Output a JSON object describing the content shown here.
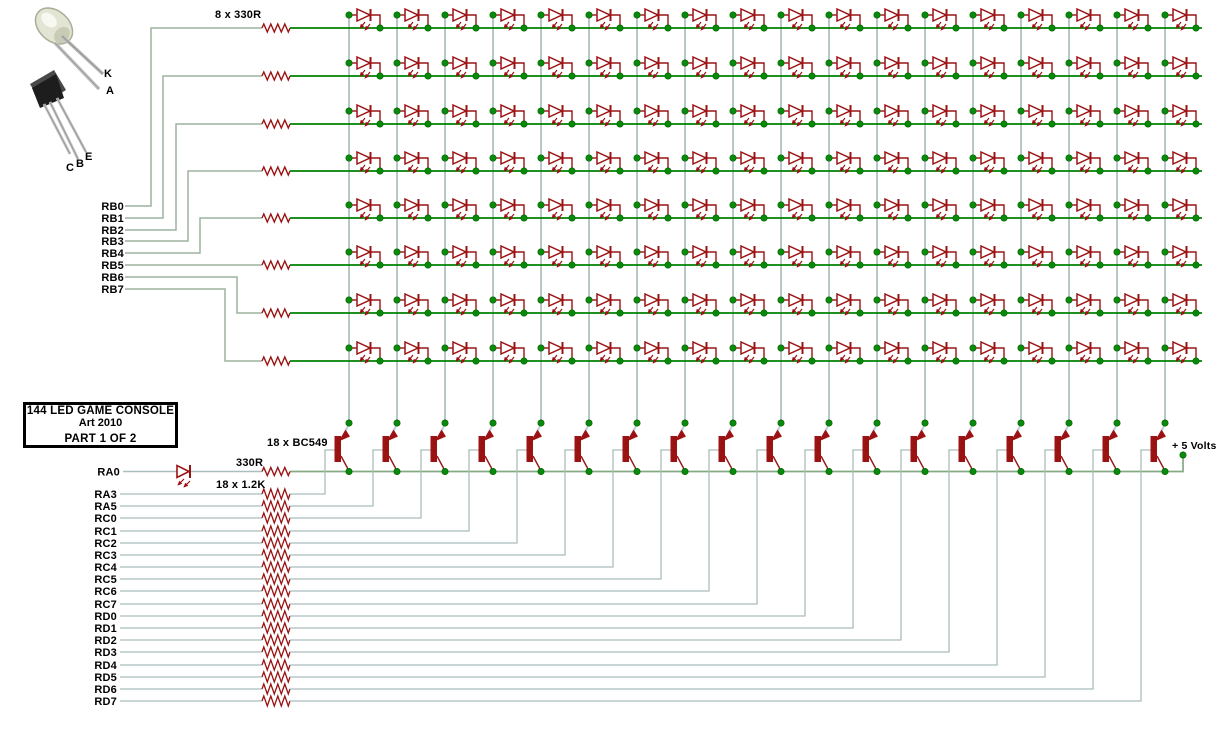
{
  "diagram": {
    "title_block": {
      "line1": "144 LED GAME CONSOLE",
      "line2": "Art 2010",
      "line3": "PART 1 OF 2"
    },
    "labels": {
      "row_resistor_group": "8 x 330R",
      "ra0_series_resistor": "330R",
      "base_resistor_group": "18 x 1.2K",
      "transistor_group": "18 x BC549",
      "supply": "+ 5 Volts"
    },
    "led_photo_pins": {
      "k": "K",
      "a": "A"
    },
    "transistor_photo_pins": {
      "c": "C",
      "b": "B",
      "e": "E"
    },
    "row_port_labels": [
      "RB0",
      "RB1",
      "RB2",
      "RB3",
      "RB4",
      "RB5",
      "RB6",
      "RB7"
    ],
    "anode_port_label": "RA0",
    "column_port_labels": [
      "RA3",
      "RA5",
      "RC0",
      "RC1",
      "RC2",
      "RC3",
      "RC4",
      "RC5",
      "RC6",
      "RC7",
      "RD0",
      "RD1",
      "RD2",
      "RD3",
      "RD4",
      "RD5",
      "RD6",
      "RD7"
    ],
    "matrix": {
      "rows": 8,
      "columns": 18,
      "led_count": 144
    },
    "colors": {
      "row_wire": "#008000",
      "rb_feed_wire": "#9DB49D",
      "column_wire": "#B6C9C9",
      "port_wire": "#ABBEBE",
      "rail_wire": "#85AA85",
      "component": "#9B1212",
      "junction_dot": "#0A8A0A",
      "text": "#000000",
      "background": "#FFFFFF"
    }
  }
}
